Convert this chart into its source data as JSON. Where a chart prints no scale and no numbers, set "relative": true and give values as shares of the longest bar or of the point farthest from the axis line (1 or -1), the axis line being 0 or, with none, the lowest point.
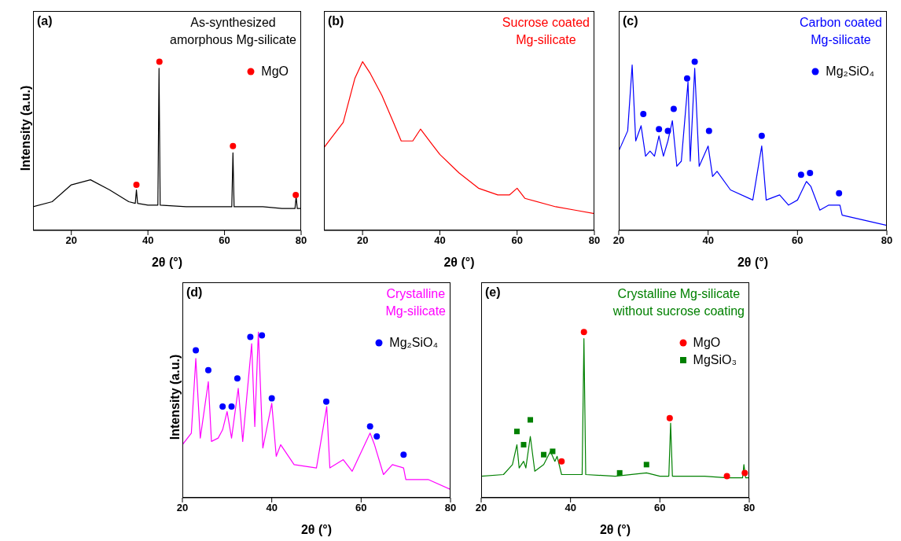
{
  "chart_data": [
    {
      "type": "line",
      "title": "(a)",
      "subtitle": "As-synthesized\namorphous Mg-silicate",
      "xlabel": "2θ (°)",
      "ylabel": "Intensity (a.u.)",
      "relative": true,
      "xlim": [
        10,
        80
      ],
      "xticks": [
        20,
        40,
        60,
        80
      ],
      "legend": "top right",
      "series": [
        {
          "color": "#000000",
          "x": [
            10,
            15,
            20,
            25,
            30,
            35,
            36.7,
            37,
            37.3,
            40,
            42.6,
            42.9,
            43.2,
            50,
            60,
            61.9,
            62.2,
            62.5,
            70,
            75,
            78.4,
            78.7,
            79,
            80
          ],
          "values": [
            0.14,
            0.17,
            0.27,
            0.3,
            0.24,
            0.17,
            0.16,
            0.24,
            0.16,
            0.15,
            0.15,
            0.96,
            0.15,
            0.14,
            0.14,
            0.14,
            0.46,
            0.14,
            0.14,
            0.13,
            0.13,
            0.2,
            0.13,
            0.13
          ]
        },
        {
          "type": "scatter",
          "name": "MgO",
          "color": "#ff0000",
          "marker": "circle",
          "x": [
            37,
            43,
            62.2,
            78.6
          ],
          "values": [
            0.27,
            1.0,
            0.5,
            0.21
          ]
        }
      ]
    },
    {
      "type": "line",
      "title": "(b)",
      "subtitle": "Sucrose coated\nMg-silicate",
      "xlabel": "2θ (°)",
      "relative": true,
      "xlim": [
        10,
        80
      ],
      "xticks": [
        20,
        40,
        60,
        80
      ],
      "series": [
        {
          "color": "#ff0000",
          "x": [
            10,
            12,
            15,
            18,
            20,
            22,
            25,
            28,
            30,
            33,
            35,
            38,
            40,
            45,
            50,
            55,
            58,
            60,
            62,
            70,
            75,
            80
          ],
          "values": [
            0.49,
            0.55,
            0.64,
            0.9,
            1.0,
            0.93,
            0.8,
            0.64,
            0.53,
            0.53,
            0.6,
            0.51,
            0.45,
            0.34,
            0.25,
            0.21,
            0.21,
            0.25,
            0.19,
            0.14,
            0.12,
            0.1
          ]
        }
      ]
    },
    {
      "type": "line",
      "title": "(c)",
      "subtitle": "Carbon coated\nMg-silicate",
      "xlabel": "2θ (°)",
      "relative": true,
      "xlim": [
        20,
        80
      ],
      "xticks": [
        20,
        40,
        60,
        80
      ],
      "legend": "top right",
      "series": [
        {
          "color": "#0000ff",
          "x": [
            20,
            22,
            23,
            23.8,
            25,
            26,
            27,
            28,
            29,
            30,
            31,
            32,
            33,
            34,
            35.5,
            36,
            37,
            38,
            40,
            41,
            42,
            45,
            50,
            52,
            53,
            56,
            58,
            60,
            62,
            63,
            65,
            67,
            69.5,
            70,
            75,
            80
          ],
          "values": [
            0.47,
            0.59,
            0.98,
            0.53,
            0.62,
            0.44,
            0.47,
            0.44,
            0.56,
            0.44,
            0.53,
            0.65,
            0.38,
            0.41,
            0.88,
            0.41,
            0.96,
            0.38,
            0.5,
            0.32,
            0.35,
            0.24,
            0.18,
            0.5,
            0.18,
            0.21,
            0.15,
            0.18,
            0.29,
            0.26,
            0.12,
            0.15,
            0.15,
            0.09,
            0.06,
            0.03
          ]
        },
        {
          "type": "scatter",
          "name": "Mg₂SiO₄",
          "color": "#0000ff",
          "marker": "circle",
          "x": [
            25.5,
            29,
            31,
            32.3,
            35.3,
            37,
            40.2,
            52,
            60.8,
            62.8,
            69.3
          ],
          "values": [
            0.69,
            0.6,
            0.59,
            0.72,
            0.9,
            1.0,
            0.59,
            0.56,
            0.33,
            0.34,
            0.22
          ]
        }
      ]
    },
    {
      "type": "line",
      "title": "(d)",
      "subtitle": "Crystalline\nMg-silicate",
      "xlabel": "2θ (°)",
      "ylabel": "Intensity (a.u.)",
      "relative": true,
      "xlim": [
        20,
        80
      ],
      "xticks": [
        20,
        40,
        60,
        80
      ],
      "legend": "top right",
      "series": [
        {
          "color": "#ff00ff",
          "x": [
            20,
            22,
            23,
            24,
            25.8,
            26.5,
            28,
            29,
            30,
            31,
            32.5,
            33.5,
            35.5,
            36.2,
            37,
            38,
            40,
            41,
            42,
            45,
            50,
            52.3,
            53,
            56,
            58,
            62,
            63,
            65,
            67,
            69.5,
            70,
            75,
            80
          ],
          "values": [
            0.32,
            0.39,
            0.84,
            0.36,
            0.7,
            0.34,
            0.36,
            0.41,
            0.52,
            0.36,
            0.66,
            0.34,
            0.93,
            0.43,
            1.0,
            0.3,
            0.57,
            0.25,
            0.32,
            0.2,
            0.18,
            0.55,
            0.18,
            0.23,
            0.16,
            0.39,
            0.32,
            0.14,
            0.2,
            0.18,
            0.11,
            0.11,
            0.05
          ]
        },
        {
          "type": "scatter",
          "name": "Mg₂SiO₄",
          "color": "#0000ff",
          "marker": "circle",
          "x": [
            23,
            25.8,
            29,
            31,
            32.3,
            35.2,
            37.8,
            40,
            52.2,
            62,
            63.5,
            69.5
          ],
          "values": [
            0.89,
            0.77,
            0.55,
            0.55,
            0.72,
            0.97,
            0.98,
            0.6,
            0.58,
            0.43,
            0.37,
            0.26
          ]
        }
      ]
    },
    {
      "type": "line",
      "title": "(e)",
      "subtitle": "Crystalline Mg-silicate\nwithout sucrose coating",
      "xlabel": "2θ (°)",
      "relative": true,
      "xlim": [
        20,
        80
      ],
      "xticks": [
        20,
        40,
        60,
        80
      ],
      "legend": "top right",
      "series": [
        {
          "color": "#008000",
          "x": [
            20,
            25,
            27,
            28,
            28.5,
            29.5,
            30,
            31,
            32,
            34,
            35.5,
            36.5,
            37,
            38,
            40,
            42.6,
            43,
            43.4,
            50,
            57,
            60,
            62,
            62.4,
            62.8,
            70,
            75,
            78.5,
            78.8,
            79.2,
            80
          ],
          "values": [
            0.13,
            0.14,
            0.2,
            0.32,
            0.18,
            0.22,
            0.18,
            0.37,
            0.16,
            0.2,
            0.28,
            0.22,
            0.25,
            0.14,
            0.14,
            0.14,
            0.96,
            0.14,
            0.13,
            0.15,
            0.13,
            0.13,
            0.45,
            0.13,
            0.13,
            0.12,
            0.12,
            0.2,
            0.12,
            0.12
          ]
        },
        {
          "type": "scatter",
          "name": "MgO",
          "color": "#ff0000",
          "marker": "circle",
          "x": [
            38,
            43,
            62.2,
            75,
            79
          ],
          "values": [
            0.22,
            1.0,
            0.48,
            0.13,
            0.15
          ]
        },
        {
          "type": "scatter",
          "name": "MgSiO₃",
          "color": "#008000",
          "marker": "square",
          "x": [
            28,
            29.5,
            31,
            34,
            36,
            51,
            57
          ],
          "values": [
            0.4,
            0.32,
            0.47,
            0.26,
            0.28,
            0.15,
            0.2
          ]
        }
      ]
    }
  ]
}
